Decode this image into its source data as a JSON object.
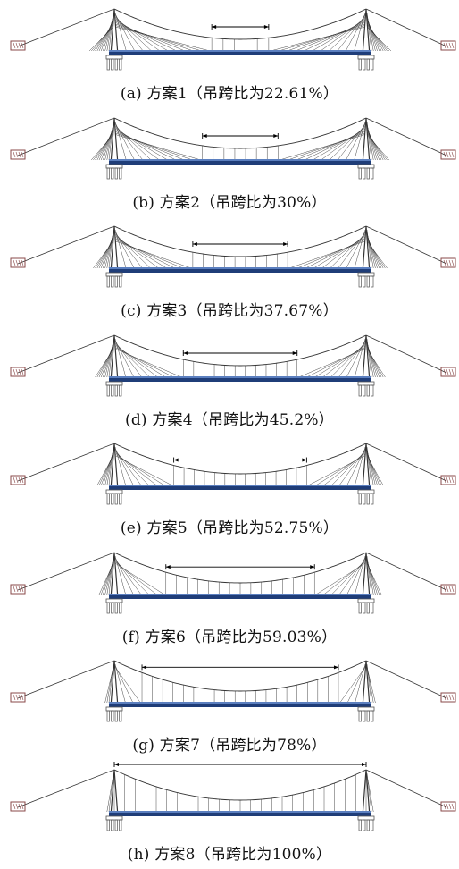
{
  "figure": {
    "panels": [
      {
        "caption": "(a) 方案1（吊跨比为22.61%）",
        "ratio": 0.2261
      },
      {
        "caption": "(b) 方案2（吊跨比为30%）",
        "ratio": 0.3
      },
      {
        "caption": "(c) 方案3（吊跨比为37.67%）",
        "ratio": 0.3767
      },
      {
        "caption": "(d) 方案4（吊跨比为45.2%）",
        "ratio": 0.452
      },
      {
        "caption": "(e) 方案5（吊跨比为52.75%）",
        "ratio": 0.5275
      },
      {
        "caption": "(f) 方案6（吊跨比为59.03%）",
        "ratio": 0.5903
      },
      {
        "caption": "(g) 方案7（吊跨比为78%）",
        "ratio": 0.78
      },
      {
        "caption": "(h) 方案8（吊跨比为100%）",
        "ratio": 1.0
      }
    ],
    "colors": {
      "line": "#333333",
      "deck_dark": "#1f3d78",
      "deck_light": "#5b7fbf",
      "pier": "#555555",
      "anchor": "#8a4a4a"
    }
  }
}
